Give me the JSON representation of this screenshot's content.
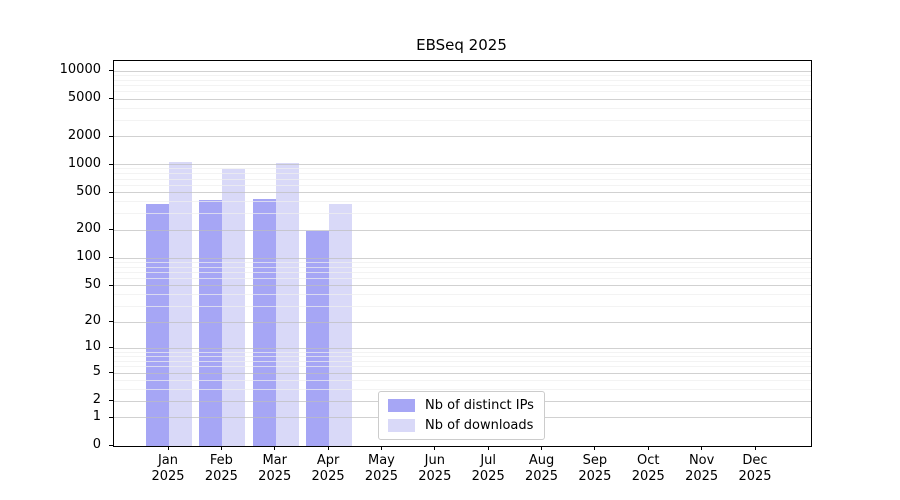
{
  "chart_data": {
    "type": "bar",
    "title": "EBSeq 2025",
    "year": "2025",
    "categories": [
      "Jan",
      "Feb",
      "Mar",
      "Apr",
      "May",
      "Jun",
      "Jul",
      "Aug",
      "Sep",
      "Oct",
      "Nov",
      "Dec"
    ],
    "series": [
      {
        "name": "Nb of distinct IPs",
        "color": "#a6a6f5",
        "values": [
          380,
          420,
          435,
          198,
          null,
          null,
          null,
          null,
          null,
          null,
          null,
          null
        ]
      },
      {
        "name": "Nb of downloads",
        "color": "#d9d9f8",
        "values": [
          1070,
          900,
          1050,
          385,
          null,
          null,
          null,
          null,
          null,
          null,
          null,
          null
        ]
      }
    ],
    "yticks": [
      0,
      1,
      2,
      5,
      10,
      20,
      50,
      100,
      200,
      500,
      1000,
      2000,
      5000,
      10000
    ],
    "yscale": "log1p",
    "ylim": [
      0,
      10000
    ],
    "xlabel": "",
    "ylabel": "",
    "grid": "horizontal major and minor gridlines",
    "legend_position": "bottom-center-inside"
  },
  "colors": {
    "major_grid": "#c9c9c9",
    "minor_grid": "#efefef",
    "axis": "#000000",
    "legend_border": "#cccccc",
    "background": "#ffffff"
  }
}
